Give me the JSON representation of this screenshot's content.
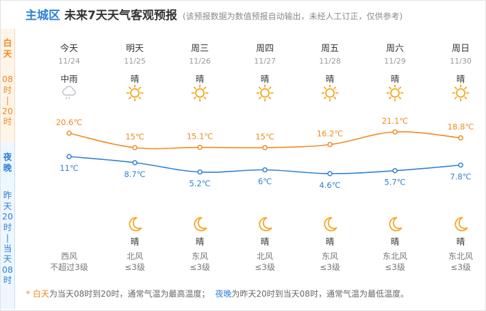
{
  "header": {
    "district": "主城区",
    "title": "未来7天天气客观预报",
    "note": "(该预报数据为数值预报自动输出，未经人工订正，仅供参考)"
  },
  "sidebar": {
    "day_chars": [
      "白",
      "天"
    ],
    "day_range": [
      "08",
      "时",
      "|",
      "20",
      "时"
    ],
    "night_chars": [
      "夜",
      "晚"
    ],
    "night_range": [
      "昨",
      "天",
      "20",
      "时",
      "|",
      "当",
      "天",
      "08",
      "时"
    ]
  },
  "days": [
    {
      "name": "今天",
      "date": "11/24",
      "day_weather": "中雨",
      "day_icon": "rain-cloud-icon",
      "high": "20.6℃",
      "low": "11℃",
      "night_weather": "",
      "night_icon": "",
      "wind_dir": "西风",
      "wind_level": "不超过3级"
    },
    {
      "name": "明天",
      "date": "11/25",
      "day_weather": "晴",
      "day_icon": "sun-icon",
      "high": "15℃",
      "low": "8.7℃",
      "night_weather": "晴",
      "night_icon": "moon-icon",
      "wind_dir": "北风",
      "wind_level": "≤3级"
    },
    {
      "name": "周三",
      "date": "11/26",
      "day_weather": "晴",
      "day_icon": "sun-icon",
      "high": "15.1℃",
      "low": "5.2℃",
      "night_weather": "晴",
      "night_icon": "moon-icon",
      "wind_dir": "东风",
      "wind_level": "≤3级"
    },
    {
      "name": "周四",
      "date": "11/27",
      "day_weather": "晴",
      "day_icon": "sun-icon",
      "high": "15℃",
      "low": "6℃",
      "night_weather": "晴",
      "night_icon": "moon-icon",
      "wind_dir": "北风",
      "wind_level": "≤3级"
    },
    {
      "name": "周五",
      "date": "11/28",
      "day_weather": "晴",
      "day_icon": "sun-icon",
      "high": "16.2℃",
      "low": "4.6℃",
      "night_weather": "晴",
      "night_icon": "moon-icon",
      "wind_dir": "东风",
      "wind_level": "≤3级"
    },
    {
      "name": "周六",
      "date": "11/29",
      "day_weather": "晴",
      "day_icon": "sun-icon",
      "high": "21.1℃",
      "low": "5.7℃",
      "night_weather": "晴",
      "night_icon": "moon-icon",
      "wind_dir": "东北风",
      "wind_level": "≤3级"
    },
    {
      "name": "周日",
      "date": "11/30",
      "day_weather": "晴",
      "day_icon": "sun-icon",
      "high": "18.8℃",
      "low": "7.8℃",
      "night_weather": "晴",
      "night_icon": "moon-icon",
      "wind_dir": "东北风",
      "wind_level": "≤3级"
    }
  ],
  "footer": {
    "star": "* ",
    "day_word": "白天",
    "day_desc": "为当天08时到20时，通常气温为最高温度；",
    "night_word": "夜晚",
    "night_desc": "为昨天20时到当天08时，通常气温为最低温度。"
  },
  "colors": {
    "high_line": "#f08a1e",
    "low_line": "#2d7fd8",
    "sun": "#f3a61e",
    "moon": "#f3a61e",
    "district": "#2d7fd8"
  },
  "chart_data": {
    "type": "line",
    "categories": [
      "今天",
      "明天",
      "周三",
      "周四",
      "周五",
      "周六",
      "周日"
    ],
    "series": [
      {
        "values": [
          20.6,
          15,
          15.1,
          15,
          16.2,
          21.1,
          18.8
        ],
        "unit": "℃"
      },
      {
        "values": [
          11,
          8.7,
          5.2,
          6,
          4.6,
          5.7,
          7.8
        ],
        "unit": "℃"
      }
    ],
    "grid": false
  }
}
